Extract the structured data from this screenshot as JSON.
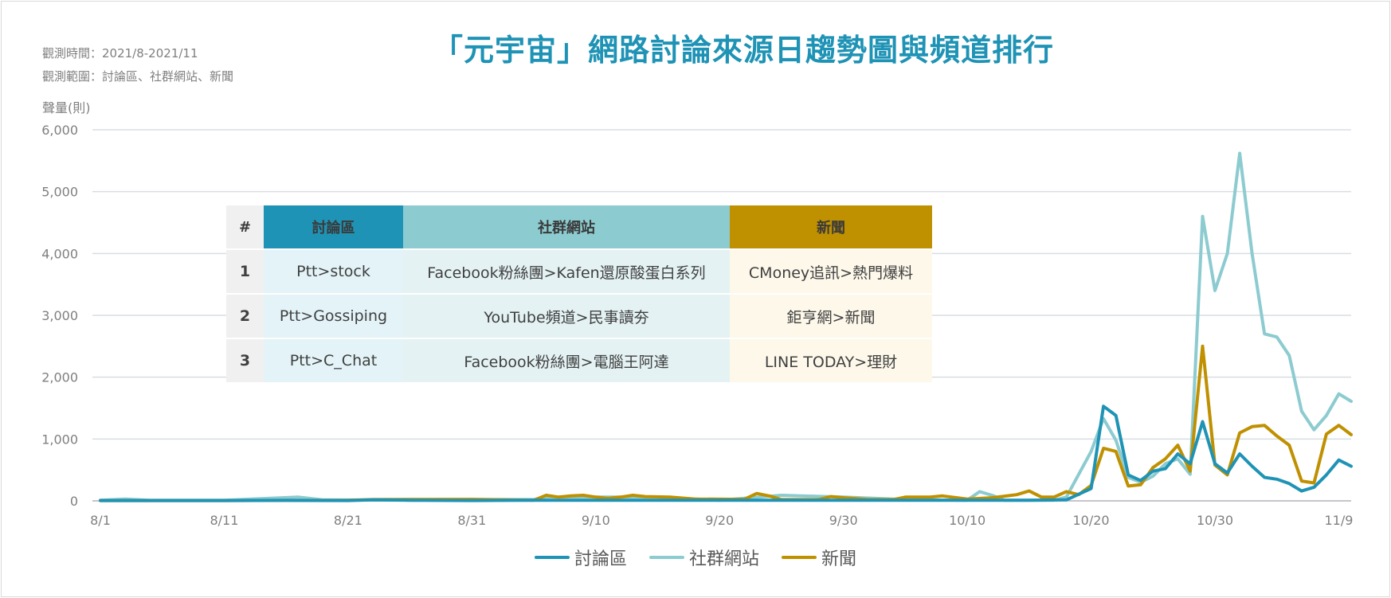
{
  "header": {
    "period": "觀測時間：2021/8-2021/11",
    "scope": "觀測範圍：討論區、社群網站、新聞",
    "title": "「元宇宙」網路討論來源日趨勢圖與頻道排行"
  },
  "colors": {
    "forum": "#1f93b5",
    "social": "#8ccbd0",
    "news": "#bf9000",
    "grid": "#d9dde3",
    "axis_text": "#7f7f7f"
  },
  "chart_data": {
    "type": "line",
    "title": "「元宇宙」網路討論來源日趨勢圖與頻道排行",
    "xlabel": "",
    "ylabel": "聲量(則)",
    "ylim": [
      0,
      6000
    ],
    "yticks": [
      "6,000",
      "5,000",
      "4,000",
      "3,000",
      "2,000",
      "1,000",
      "0"
    ],
    "yticks_values": [
      6000,
      5000,
      4000,
      3000,
      2000,
      1000,
      0
    ],
    "x_tick_labels": [
      "8/1",
      "8/11",
      "8/21",
      "8/31",
      "9/10",
      "9/20",
      "9/30",
      "10/10",
      "10/20",
      "10/30",
      "11/9"
    ],
    "x_tick_days": [
      0,
      10,
      20,
      30,
      40,
      50,
      60,
      70,
      80,
      90,
      100
    ],
    "x_range_days": [
      0,
      101
    ],
    "grid": true,
    "legend_position": "bottom",
    "series": [
      {
        "name": "討論區",
        "points": [
          [
            0,
            5
          ],
          [
            5,
            5
          ],
          [
            10,
            5
          ],
          [
            15,
            8
          ],
          [
            20,
            5
          ],
          [
            22,
            15
          ],
          [
            25,
            10
          ],
          [
            30,
            5
          ],
          [
            35,
            10
          ],
          [
            40,
            10
          ],
          [
            45,
            10
          ],
          [
            50,
            10
          ],
          [
            55,
            10
          ],
          [
            60,
            10
          ],
          [
            65,
            10
          ],
          [
            70,
            10
          ],
          [
            75,
            10
          ],
          [
            78,
            15
          ],
          [
            80,
            200
          ],
          [
            81,
            1530
          ],
          [
            82,
            1380
          ],
          [
            83,
            420
          ],
          [
            84,
            330
          ],
          [
            85,
            480
          ],
          [
            86,
            520
          ],
          [
            87,
            760
          ],
          [
            88,
            600
          ],
          [
            89,
            1280
          ],
          [
            90,
            600
          ],
          [
            91,
            450
          ],
          [
            92,
            760
          ],
          [
            93,
            560
          ],
          [
            94,
            380
          ],
          [
            95,
            350
          ],
          [
            96,
            280
          ],
          [
            97,
            160
          ],
          [
            98,
            220
          ],
          [
            99,
            420
          ],
          [
            100,
            660
          ],
          [
            101,
            560
          ]
        ]
      },
      {
        "name": "社群網站",
        "points": [
          [
            0,
            10
          ],
          [
            2,
            30
          ],
          [
            4,
            10
          ],
          [
            10,
            10
          ],
          [
            16,
            60
          ],
          [
            18,
            15
          ],
          [
            25,
            10
          ],
          [
            30,
            20
          ],
          [
            35,
            20
          ],
          [
            36,
            60
          ],
          [
            40,
            60
          ],
          [
            45,
            60
          ],
          [
            50,
            10
          ],
          [
            55,
            90
          ],
          [
            60,
            60
          ],
          [
            65,
            20
          ],
          [
            70,
            10
          ],
          [
            71,
            150
          ],
          [
            72,
            90
          ],
          [
            73,
            10
          ],
          [
            77,
            10
          ],
          [
            78,
            60
          ],
          [
            80,
            800
          ],
          [
            81,
            1330
          ],
          [
            82,
            980
          ],
          [
            83,
            380
          ],
          [
            84,
            300
          ],
          [
            85,
            400
          ],
          [
            86,
            600
          ],
          [
            87,
            680
          ],
          [
            88,
            430
          ],
          [
            89,
            4600
          ],
          [
            90,
            3400
          ],
          [
            91,
            4000
          ],
          [
            92,
            5620
          ],
          [
            93,
            4000
          ],
          [
            94,
            2700
          ],
          [
            95,
            2650
          ],
          [
            96,
            2350
          ],
          [
            97,
            1450
          ],
          [
            98,
            1150
          ],
          [
            99,
            1380
          ],
          [
            100,
            1730
          ],
          [
            101,
            1610
          ]
        ]
      },
      {
        "name": "新聞",
        "points": [
          [
            0,
            5
          ],
          [
            10,
            5
          ],
          [
            20,
            10
          ],
          [
            22,
            20
          ],
          [
            30,
            25
          ],
          [
            35,
            10
          ],
          [
            36,
            90
          ],
          [
            37,
            60
          ],
          [
            38,
            80
          ],
          [
            39,
            90
          ],
          [
            40,
            60
          ],
          [
            41,
            40
          ],
          [
            42,
            60
          ],
          [
            43,
            90
          ],
          [
            44,
            70
          ],
          [
            46,
            60
          ],
          [
            48,
            30
          ],
          [
            52,
            25
          ],
          [
            53,
            120
          ],
          [
            54,
            80
          ],
          [
            55,
            20
          ],
          [
            58,
            20
          ],
          [
            59,
            70
          ],
          [
            60,
            50
          ],
          [
            62,
            20
          ],
          [
            64,
            20
          ],
          [
            65,
            60
          ],
          [
            67,
            60
          ],
          [
            68,
            80
          ],
          [
            70,
            30
          ],
          [
            72,
            50
          ],
          [
            74,
            100
          ],
          [
            75,
            160
          ],
          [
            76,
            60
          ],
          [
            77,
            60
          ],
          [
            78,
            150
          ],
          [
            79,
            100
          ],
          [
            80,
            250
          ],
          [
            81,
            850
          ],
          [
            82,
            800
          ],
          [
            83,
            240
          ],
          [
            84,
            260
          ],
          [
            85,
            540
          ],
          [
            86,
            680
          ],
          [
            87,
            900
          ],
          [
            88,
            480
          ],
          [
            89,
            2500
          ],
          [
            90,
            580
          ],
          [
            91,
            420
          ],
          [
            92,
            1100
          ],
          [
            93,
            1200
          ],
          [
            94,
            1220
          ],
          [
            95,
            1050
          ],
          [
            96,
            900
          ],
          [
            97,
            320
          ],
          [
            98,
            290
          ],
          [
            99,
            1080
          ],
          [
            100,
            1220
          ],
          [
            101,
            1070
          ]
        ]
      }
    ]
  },
  "ranking": {
    "headers": [
      "#",
      "討論區",
      "社群網站",
      "新聞"
    ],
    "rows": [
      [
        "1",
        "Ptt>stock",
        "Facebook粉絲團>Kafen還原酸蛋白系列",
        "CMoney追訊>熱門爆料"
      ],
      [
        "2",
        "Ptt>Gossiping",
        "YouTube頻道>民事讀夯",
        "鉅亨網>新聞"
      ],
      [
        "3",
        "Ptt>C_Chat",
        "Facebook粉絲團>電腦王阿達",
        "LINE TODAY>理財"
      ]
    ]
  }
}
